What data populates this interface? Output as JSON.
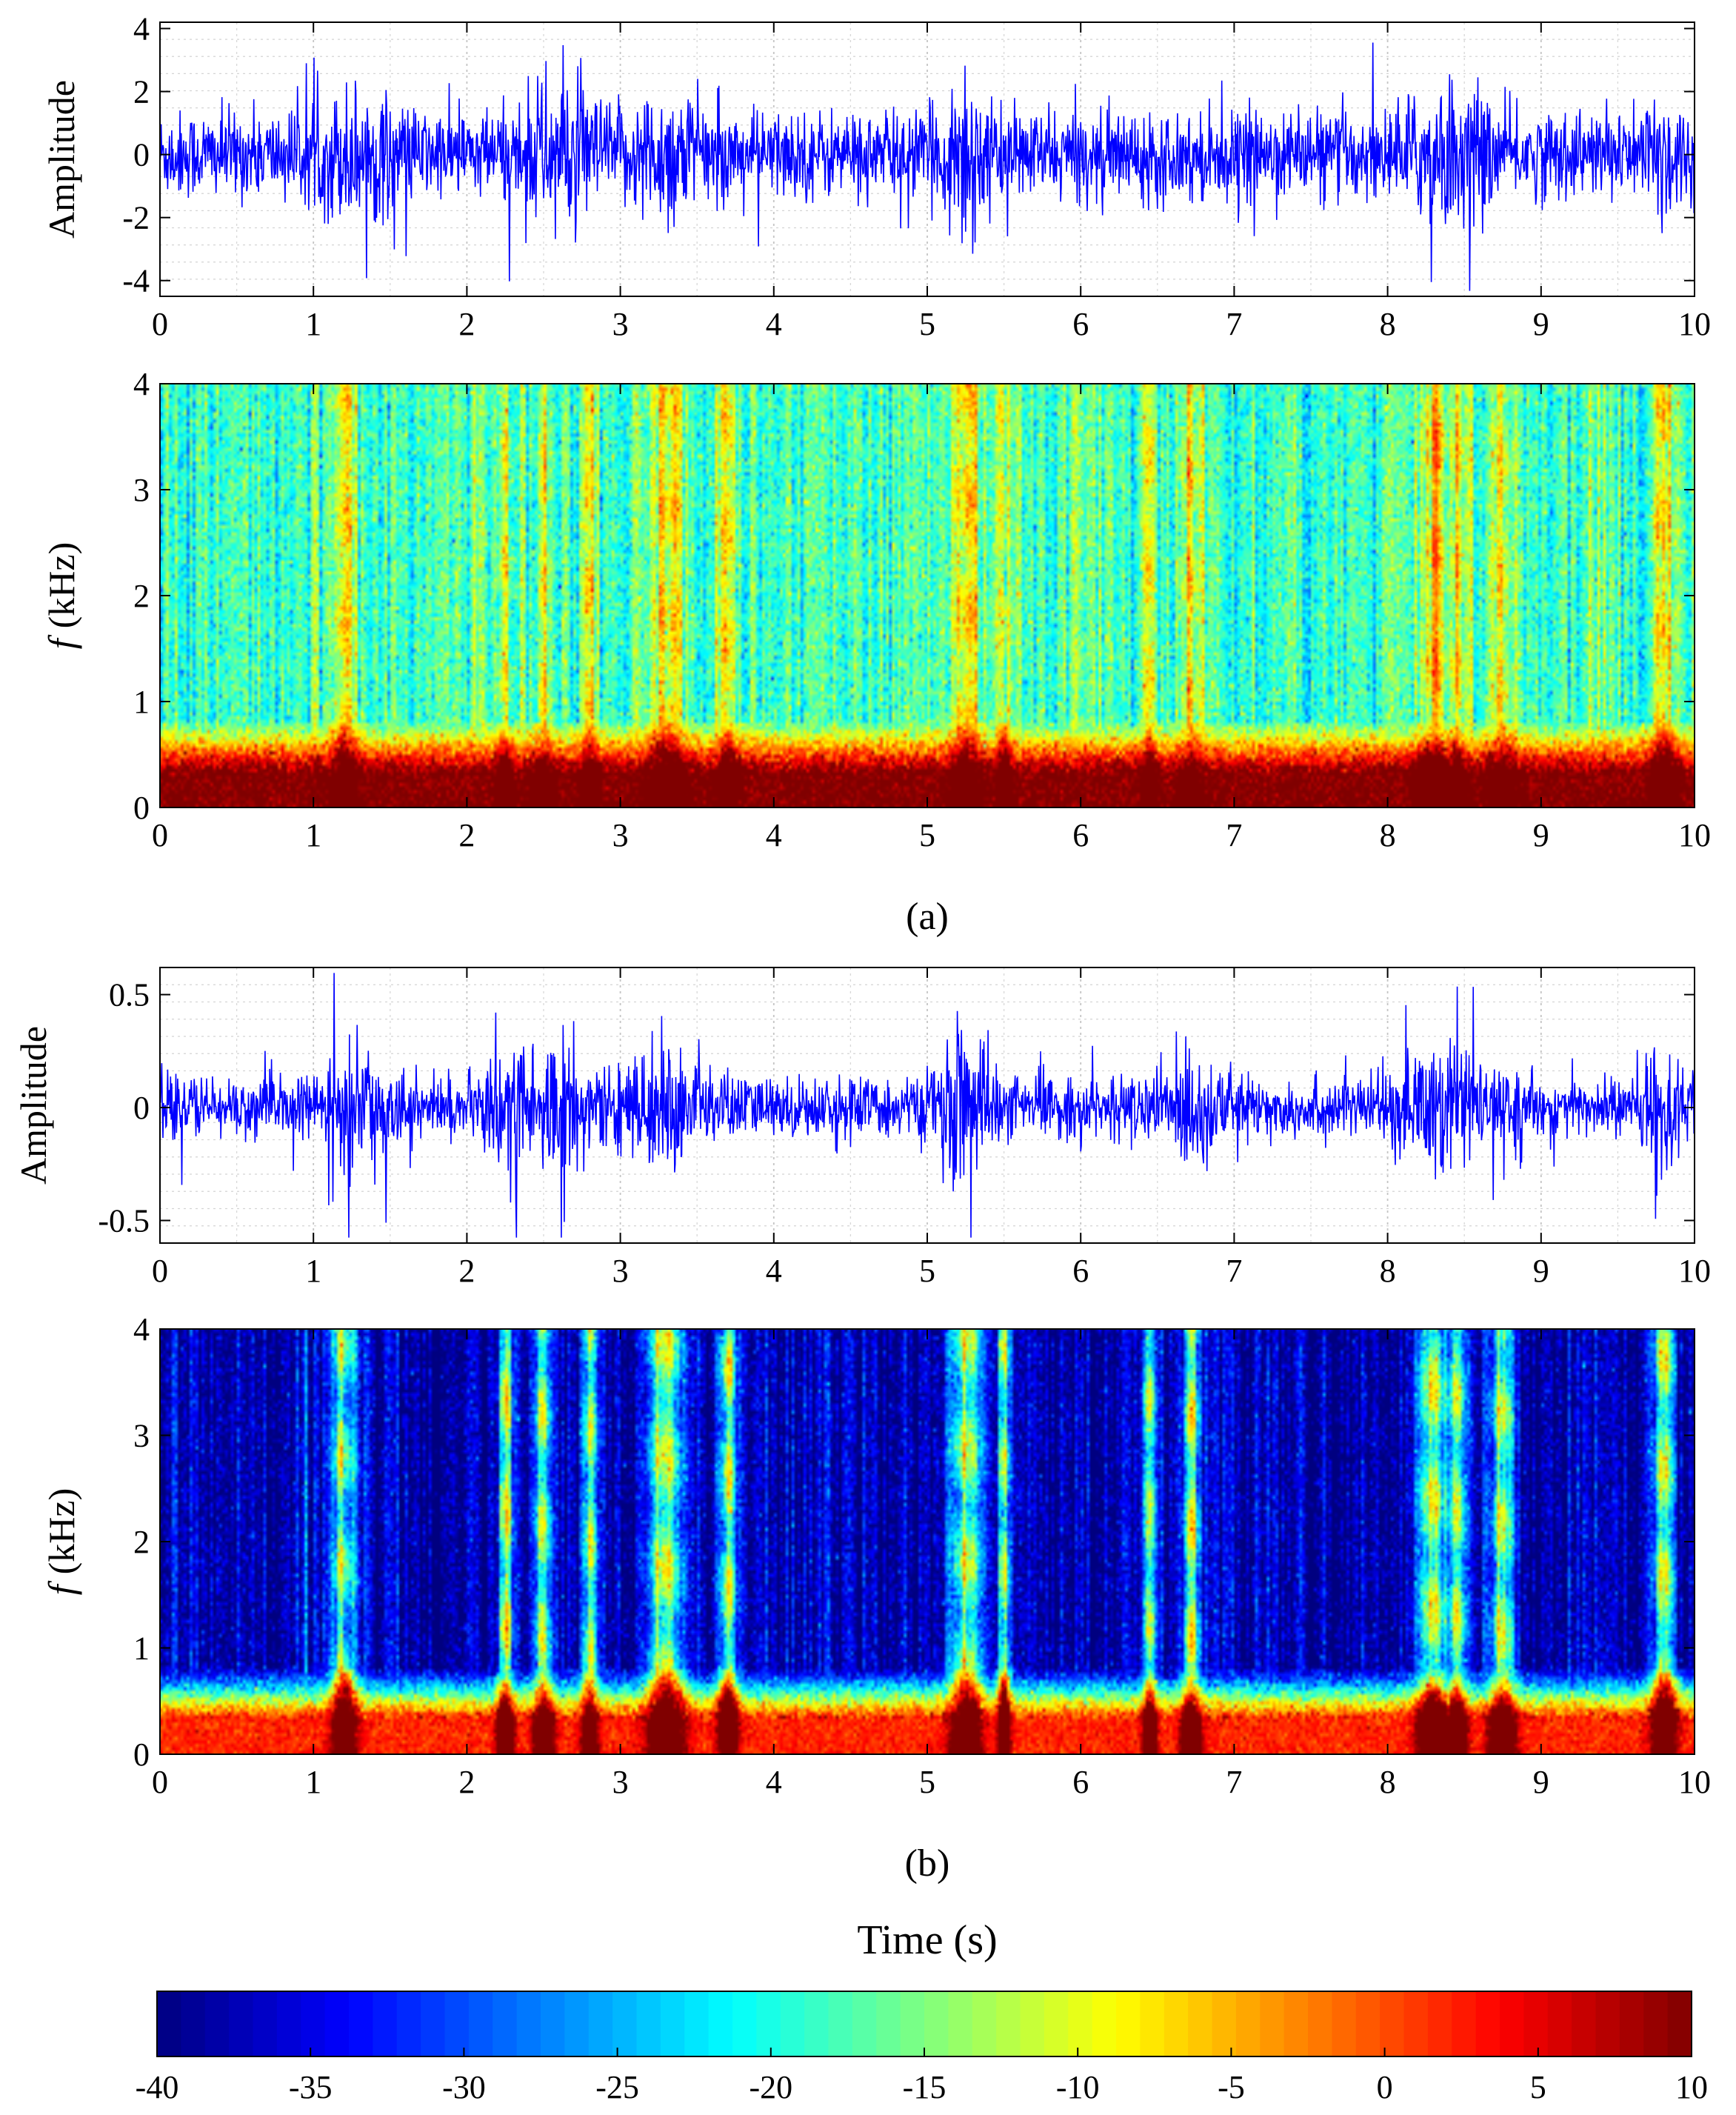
{
  "chart_data": [
    {
      "id": "a-waveform",
      "type": "line",
      "panel": "(a)",
      "ylabel": "Amplitude",
      "xlim": [
        0,
        10
      ],
      "ylim": [
        -4.5,
        4.2
      ],
      "xticks": [
        "0",
        "1",
        "2",
        "3",
        "4",
        "5",
        "6",
        "7",
        "8",
        "9",
        "10"
      ],
      "yticks": [
        {
          "v": 4,
          "label": "4"
        },
        {
          "v": 2,
          "label": "2"
        },
        {
          "v": 0,
          "label": "0"
        },
        {
          "v": -2,
          "label": "-2"
        },
        {
          "v": -4,
          "label": "-4"
        }
      ],
      "color": "#0000ff",
      "amplitude_scale": 1.15,
      "bursts": [
        [
          1.3,
          0.25,
          0.7
        ],
        [
          2.6,
          0.25,
          0.9
        ],
        [
          3.3,
          0.2,
          0.7
        ],
        [
          5.25,
          0.1,
          1.5
        ],
        [
          8.4,
          0.25,
          0.8
        ],
        [
          9.8,
          0.1,
          0.9
        ]
      ]
    },
    {
      "id": "a-spectrogram",
      "type": "heatmap",
      "panel": "(a)",
      "ylabel": "(kHz)",
      "ylabel_symbol": "f",
      "xlim": [
        0,
        10
      ],
      "ylim": [
        0,
        4
      ],
      "xticks": [
        "0",
        "1",
        "2",
        "3",
        "4",
        "5",
        "6",
        "7",
        "8",
        "9",
        "10"
      ],
      "yticks": [
        {
          "v": 4,
          "label": "4"
        },
        {
          "v": 3,
          "label": "3"
        },
        {
          "v": 2,
          "label": "2"
        },
        {
          "v": 1,
          "label": "1"
        },
        {
          "v": 0,
          "label": "0"
        }
      ],
      "background_db": -18,
      "low_band_db": 10
    },
    {
      "id": "b-waveform",
      "type": "line",
      "panel": "(b)",
      "ylabel": "Amplitude",
      "xlim": [
        0,
        10
      ],
      "ylim": [
        -0.6,
        0.62
      ],
      "xticks": [
        "0",
        "1",
        "2",
        "3",
        "4",
        "5",
        "6",
        "7",
        "8",
        "9",
        "10"
      ],
      "yticks": [
        {
          "v": 0.5,
          "label": "0.5"
        },
        {
          "v": 0,
          "label": "0"
        },
        {
          "v": -0.5,
          "label": "-0.5"
        }
      ],
      "color": "#0000ff",
      "amplitude_scale": 0.11,
      "bursts": [
        [
          1.3,
          0.2,
          1.2
        ],
        [
          2.3,
          0.12,
          2.0
        ],
        [
          2.6,
          0.15,
          2.0
        ],
        [
          3.3,
          0.3,
          1.2
        ],
        [
          5.25,
          0.15,
          2.2
        ],
        [
          6.7,
          0.2,
          1.2
        ],
        [
          8.35,
          0.25,
          1.6
        ],
        [
          9.8,
          0.1,
          1.6
        ]
      ]
    },
    {
      "id": "b-spectrogram",
      "type": "heatmap",
      "panel": "(b)",
      "ylabel": "(kHz)",
      "ylabel_symbol": "f",
      "xlim": [
        0,
        10
      ],
      "ylim": [
        0,
        4
      ],
      "xticks": [
        "0",
        "1",
        "2",
        "3",
        "4",
        "5",
        "6",
        "7",
        "8",
        "9",
        "10"
      ],
      "yticks": [
        {
          "v": 4,
          "label": "4"
        },
        {
          "v": 3,
          "label": "3"
        },
        {
          "v": 2,
          "label": "2"
        },
        {
          "v": 1,
          "label": "1"
        },
        {
          "v": 0,
          "label": "0"
        }
      ],
      "background_db": -38,
      "low_band_db": 2
    }
  ],
  "events_s": [
    [
      1.2,
      0.08
    ],
    [
      2.25,
      0.05
    ],
    [
      2.5,
      0.06
    ],
    [
      2.8,
      0.05
    ],
    [
      3.3,
      0.12
    ],
    [
      3.7,
      0.06
    ],
    [
      5.25,
      0.1
    ],
    [
      5.5,
      0.04
    ],
    [
      6.45,
      0.04
    ],
    [
      6.72,
      0.06
    ],
    [
      8.3,
      0.1
    ],
    [
      8.45,
      0.06
    ],
    [
      8.75,
      0.08
    ],
    [
      9.8,
      0.08
    ]
  ],
  "captions": {
    "a": "(a)",
    "b": "(b)"
  },
  "xlabel": "Time (s)",
  "colorbar": {
    "min": -40,
    "max": 10,
    "ticks": [
      "-40",
      "-35",
      "-30",
      "-25",
      "-20",
      "-15",
      "-10",
      "-5",
      "0",
      "5",
      "10"
    ],
    "colormap": "jet"
  }
}
